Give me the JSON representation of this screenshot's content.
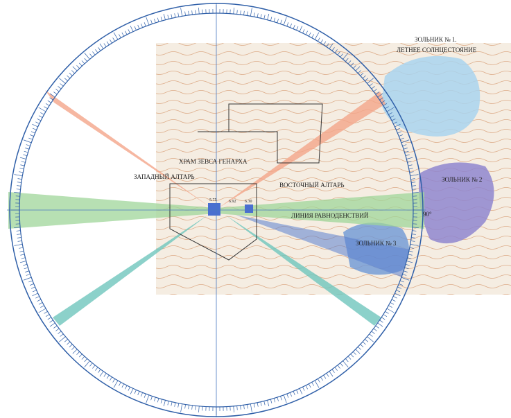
{
  "map": {
    "labels": {
      "ash_pit_1": "ЗОЛЬНИК № 1.",
      "summer_solstice": "ЛЕТНЕЕ СОЛНЦЕСТОЯНИЕ",
      "ash_pit_2": "ЗОЛЬНИК № 2",
      "ash_pit_3": "ЗОЛЬНИК № 3",
      "temple": "ХРАМ ЗЕВСА ГЕНАРХА",
      "west_altar": "ЗАПАДНЫЙ АЛТАРЬ",
      "east_altar": "ВОСТОЧНЫЙ АЛТАРЬ",
      "equinox_line": "ЛИНИЯ  РАВНОДЕНСТВИЙ",
      "angle": "90°"
    },
    "elevations": [
      "5.75",
      "6.92",
      "6.30"
    ]
  }
}
